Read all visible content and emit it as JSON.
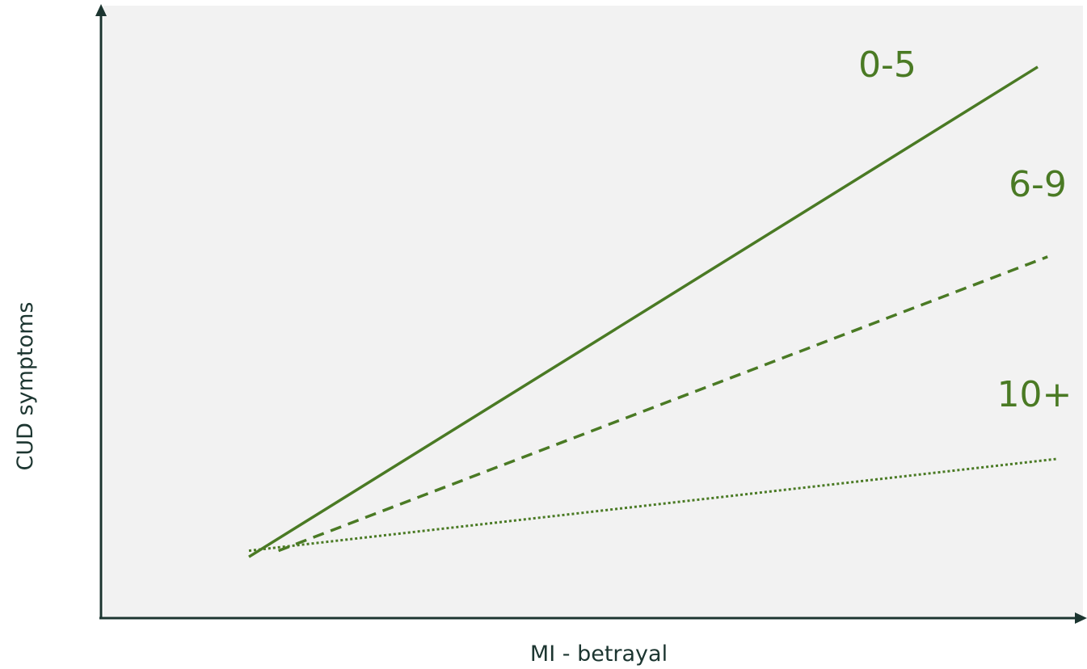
{
  "chart_data": {
    "type": "line",
    "title": "",
    "xlabel": "MI - betrayal",
    "ylabel": "CUD symptoms",
    "xlim": [
      0,
      1
    ],
    "ylim": [
      0,
      1
    ],
    "grid": false,
    "legend": "none",
    "series": [
      {
        "name": "0-5",
        "style": "solid",
        "x": [
          0.15,
          0.95
        ],
        "y": [
          0.1,
          0.9
        ]
      },
      {
        "name": "6-9",
        "style": "dashed",
        "x": [
          0.18,
          0.96
        ],
        "y": [
          0.11,
          0.59
        ]
      },
      {
        "name": "10+",
        "style": "dotted",
        "x": [
          0.15,
          0.97
        ],
        "y": [
          0.11,
          0.26
        ]
      }
    ]
  },
  "colors": {
    "line": "#4a7a24",
    "label": "#4a7a24",
    "axis": "#1c3530",
    "plot_background": "#f2f2f2"
  }
}
